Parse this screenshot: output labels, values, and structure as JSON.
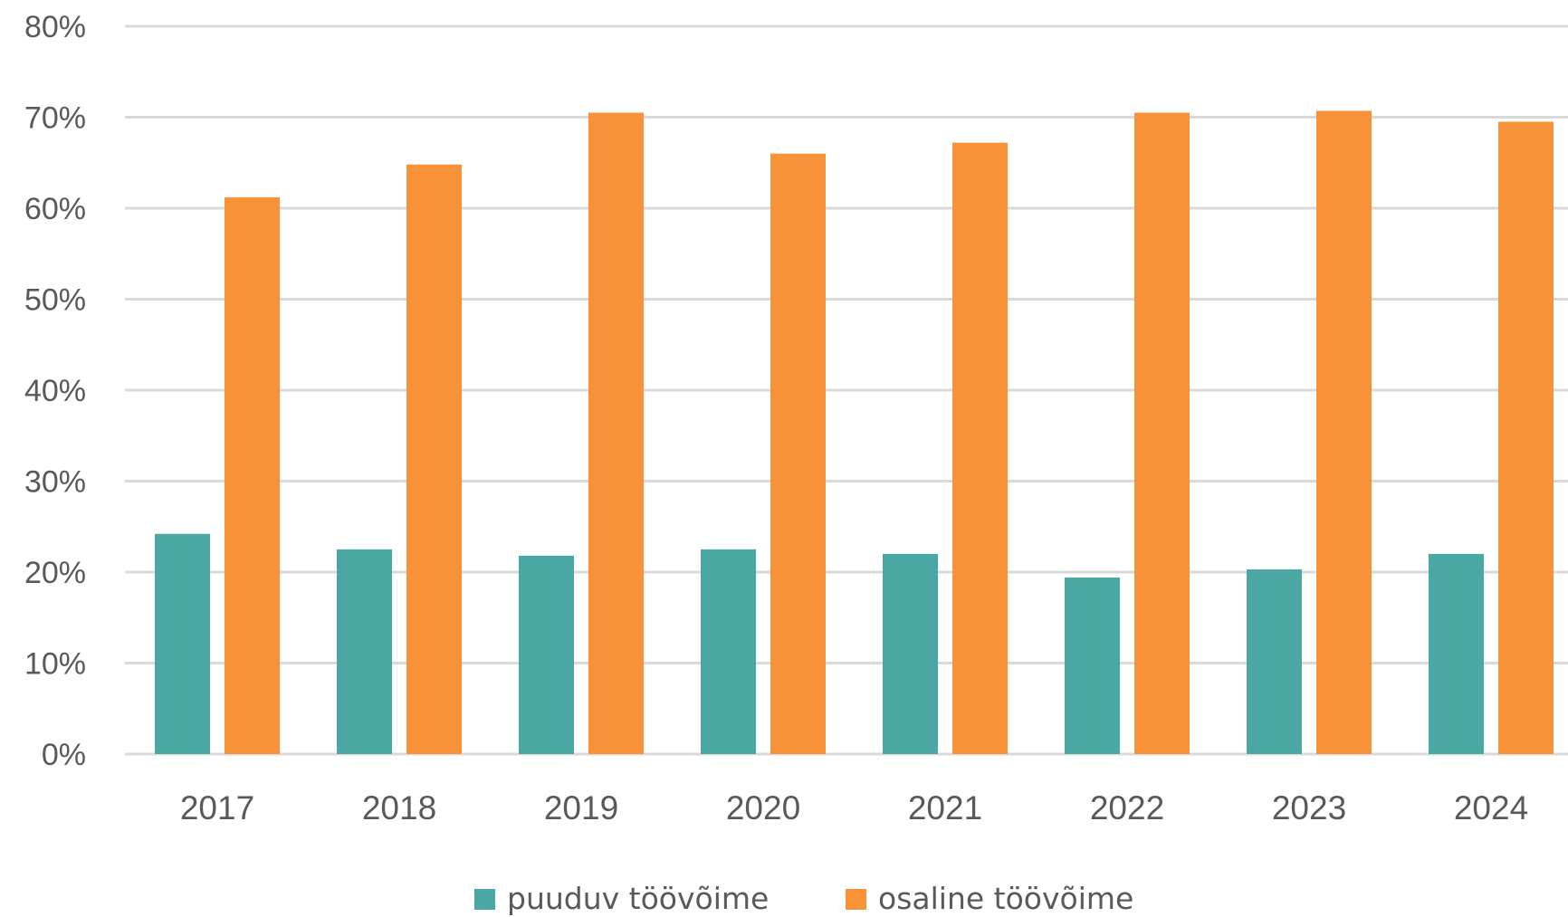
{
  "chart_data": {
    "type": "bar",
    "title": "",
    "xlabel": "",
    "ylabel": "",
    "categories": [
      "2017",
      "2018",
      "2019",
      "2020",
      "2021",
      "2022",
      "2023",
      "2024"
    ],
    "series": [
      {
        "name": "puuduv töövõime",
        "color": "#4aa7a4",
        "values": [
          24.2,
          22.5,
          21.8,
          22.5,
          22.0,
          19.4,
          20.3,
          22.0
        ]
      },
      {
        "name": "osaline töövõime",
        "color": "#f79239",
        "values": [
          61.2,
          64.8,
          70.5,
          66.0,
          67.2,
          70.5,
          70.7,
          69.5
        ]
      }
    ],
    "ylim": [
      0,
      80
    ],
    "yticks": [
      0,
      10,
      20,
      30,
      40,
      50,
      60,
      70,
      80
    ],
    "ytick_labels": [
      "0%",
      "10%",
      "20%",
      "30%",
      "40%",
      "50%",
      "60%",
      "70%",
      "80%"
    ],
    "grid": true,
    "legend_position": "bottom",
    "gridline_color": "#d9d9d9",
    "text_color": "#595959"
  }
}
